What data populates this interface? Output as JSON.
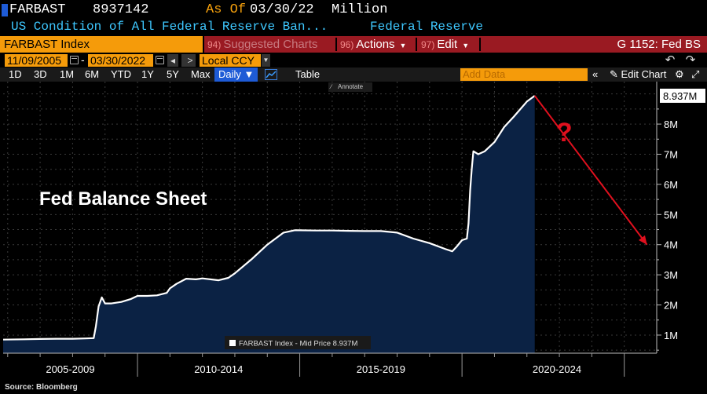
{
  "header": {
    "ticker": "FARBAST",
    "value": "8937142",
    "as_of_label": "As Of",
    "as_of_date": "03/30/22",
    "unit": "Million",
    "description": "US Condition of All Federal Reserve Ban...",
    "source": "Federal Reserve"
  },
  "function_bar": {
    "security": "FARBAST Index",
    "suggested": {
      "num": "94)",
      "label": "Suggested Charts"
    },
    "actions": {
      "num": "96)",
      "label": "Actions"
    },
    "edit": {
      "num": "97)",
      "label": "Edit"
    },
    "right_title": "G 1152: Fed BS"
  },
  "date_range": {
    "start": "11/09/2005",
    "end": "03/30/2022",
    "currency": "Local CCY"
  },
  "toolbar": {
    "periods": [
      "1D",
      "3D",
      "1M",
      "6M",
      "YTD",
      "1Y",
      "5Y",
      "Max"
    ],
    "frequency": "Daily",
    "table_label": "Table",
    "add_data_placeholder": "Add Data",
    "edit_chart_label": "Edit Chart",
    "annotate_label": "Annotate"
  },
  "footer": {
    "source_label": "Source: Bloomberg"
  },
  "colors": {
    "accent": "#f59b0a",
    "area_fill": "#0b2244",
    "line": "#ffffff",
    "arrow": "#e0101e",
    "function_red": "#9a1a22"
  },
  "chart_data": {
    "type": "area",
    "title": "Fed Balance Sheet",
    "annotation_text": "?",
    "legend_label": "FARBAST Index - Mid Price 8.937M",
    "last_value_label": "8.937M",
    "x_label_groups": [
      "2005-2009",
      "2010-2014",
      "2015-2019",
      "2020-2024"
    ],
    "y_ticks": [
      "1M",
      "2M",
      "3M",
      "4M",
      "5M",
      "6M",
      "7M",
      "8M"
    ],
    "y_tick_values": [
      1,
      2,
      3,
      4,
      5,
      6,
      7,
      8
    ],
    "ylim": [
      0.4,
      9.2
    ],
    "xlim": [
      2005.86,
      2026.0
    ],
    "y_unit": "millions (USD, millions of millions)",
    "series": [
      {
        "x": [
          2005.86,
          2006.5,
          2007.0,
          2007.5,
          2008.0,
          2008.4,
          2008.65,
          2008.72,
          2008.8,
          2008.9,
          2009.0,
          2009.2,
          2009.5,
          2009.8,
          2010.0,
          2010.3,
          2010.6,
          2010.9,
          2011.0,
          2011.2,
          2011.5,
          2011.8,
          2012.0,
          2012.5,
          2012.8,
          2013.0,
          2013.5,
          2014.0,
          2014.5,
          2014.85,
          2015.5,
          2016.0,
          2016.5,
          2017.0,
          2017.5,
          2018.0,
          2018.5,
          2019.0,
          2019.5,
          2019.7,
          2019.85,
          2020.0,
          2020.15,
          2020.2,
          2020.25,
          2020.3,
          2020.35,
          2020.5,
          2020.7,
          2021.0,
          2021.3,
          2021.6,
          2022.0,
          2022.24
        ],
        "y": [
          0.85,
          0.86,
          0.87,
          0.88,
          0.88,
          0.89,
          0.9,
          1.3,
          1.95,
          2.25,
          2.05,
          2.05,
          2.1,
          2.2,
          2.3,
          2.3,
          2.32,
          2.4,
          2.55,
          2.7,
          2.87,
          2.85,
          2.88,
          2.82,
          2.9,
          3.05,
          3.5,
          4.0,
          4.4,
          4.48,
          4.47,
          4.47,
          4.46,
          4.45,
          4.45,
          4.4,
          4.2,
          4.05,
          3.85,
          3.78,
          3.95,
          4.15,
          4.2,
          4.7,
          5.8,
          6.5,
          7.1,
          7.0,
          7.1,
          7.4,
          7.9,
          8.25,
          8.75,
          8.94
        ]
      }
    ],
    "projection": {
      "x": [
        2022.24,
        2025.7
      ],
      "y": [
        8.94,
        4.0
      ]
    }
  }
}
